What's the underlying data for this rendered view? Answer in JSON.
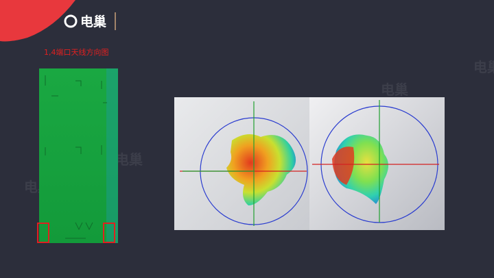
{
  "header": {
    "logo": "电巢"
  },
  "slide": {
    "title": "1,4端口天线方向图"
  },
  "watermarks": [
    "电巢",
    "电巢",
    "电巢",
    "电巢"
  ]
}
